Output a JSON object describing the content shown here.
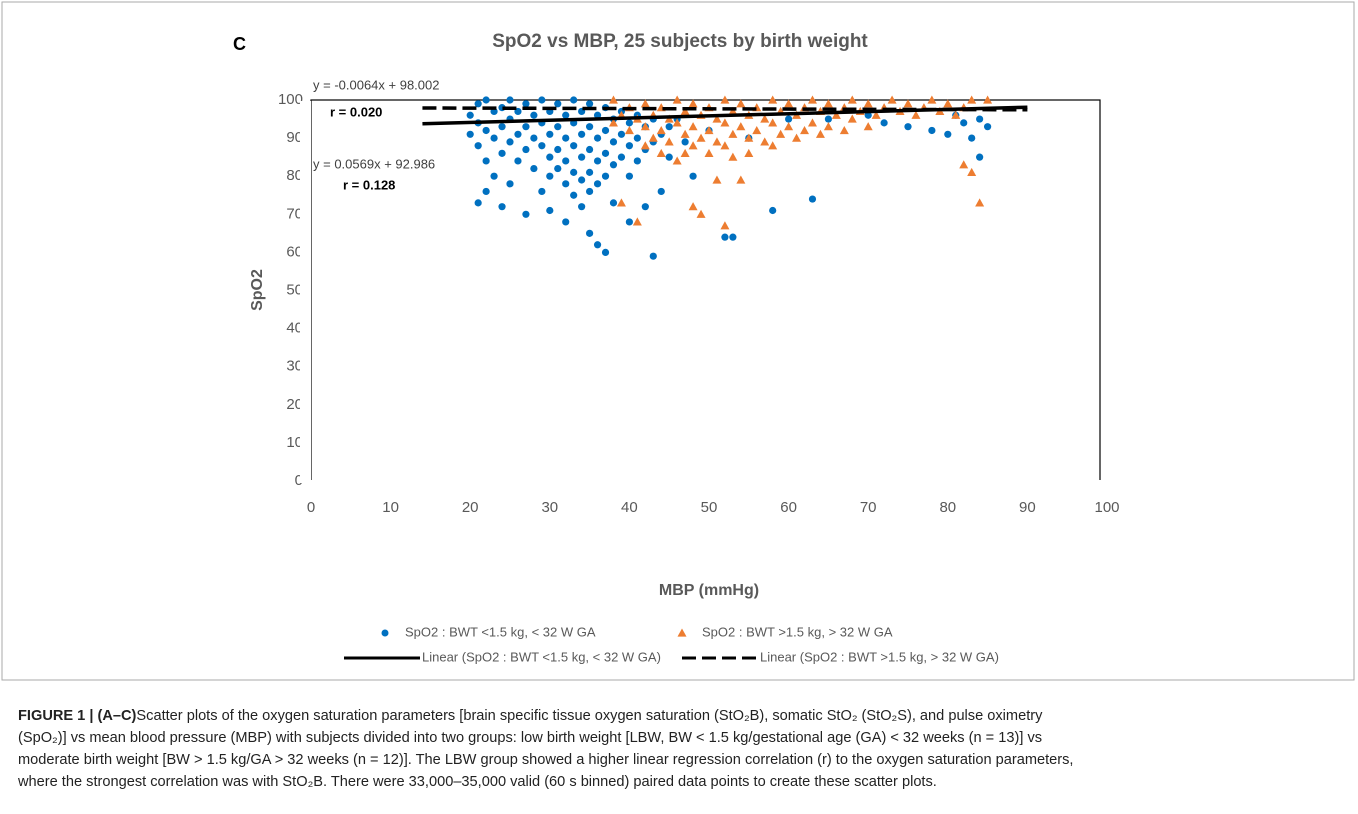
{
  "panel_label": "C",
  "chart_data": {
    "type": "scatter",
    "title": "SpO2 vs MBP, 25 subjects by birth weight",
    "x_label": "MBP (mmHg)",
    "y_label": "SpO2",
    "xlim": [
      0,
      100
    ],
    "xticks": [
      0,
      10,
      20,
      30,
      40,
      50,
      60,
      70,
      80,
      90,
      100
    ],
    "ylim": [
      0,
      100
    ],
    "yticks": [
      0,
      10,
      20,
      30,
      40,
      50,
      60,
      70,
      80,
      90,
      100
    ],
    "annotations": [
      "y = -0.0064x + 98.002",
      "r = 0.020",
      "y = 0.0569x + 92.986",
      "r = 0.128"
    ],
    "series": [
      {
        "name": "SpO2 : BWT <1.5 kg, < 32 W GA",
        "color": "#0070c0",
        "marker": "circle",
        "x": [
          20,
          20,
          21,
          21,
          21,
          21,
          22,
          22,
          22,
          22,
          23,
          23,
          23,
          24,
          24,
          24,
          24,
          25,
          25,
          25,
          25,
          26,
          26,
          26,
          27,
          27,
          27,
          27,
          28,
          28,
          28,
          29,
          29,
          29,
          29,
          30,
          30,
          30,
          30,
          30,
          31,
          31,
          31,
          31,
          32,
          32,
          32,
          32,
          32,
          33,
          33,
          33,
          33,
          33,
          34,
          34,
          34,
          34,
          34,
          35,
          35,
          35,
          35,
          35,
          35,
          36,
          36,
          36,
          36,
          36,
          37,
          37,
          37,
          37,
          37,
          38,
          38,
          38,
          38,
          39,
          39,
          39,
          40,
          40,
          40,
          40,
          41,
          41,
          41,
          42,
          42,
          42,
          43,
          43,
          43,
          44,
          44,
          45,
          45,
          46,
          47,
          48,
          50,
          52,
          53,
          55,
          58,
          60,
          63,
          65,
          70,
          72,
          75,
          78,
          80,
          81,
          82,
          83,
          84,
          84,
          85
        ],
        "values": [
          96,
          91,
          99,
          94,
          88,
          73,
          100,
          92,
          84,
          76,
          97,
          90,
          80,
          98,
          93,
          86,
          72,
          100,
          95,
          89,
          78,
          97,
          91,
          84,
          99,
          93,
          87,
          70,
          96,
          90,
          82,
          100,
          94,
          88,
          76,
          97,
          91,
          85,
          80,
          71,
          99,
          93,
          87,
          82,
          96,
          90,
          84,
          78,
          68,
          100,
          94,
          88,
          81,
          75,
          97,
          91,
          85,
          79,
          72,
          99,
          93,
          87,
          81,
          76,
          65,
          96,
          90,
          84,
          78,
          62,
          98,
          92,
          86,
          80,
          60,
          95,
          89,
          83,
          73,
          97,
          91,
          85,
          94,
          88,
          80,
          68,
          96,
          90,
          84,
          93,
          87,
          72,
          95,
          89,
          59,
          91,
          76,
          93,
          85,
          95,
          89,
          80,
          92,
          64,
          64,
          90,
          71,
          95,
          74,
          95,
          96,
          94,
          93,
          92,
          91,
          96,
          94,
          90,
          85,
          95,
          93
        ]
      },
      {
        "name": "SpO2 : BWT >1.5 kg, > 32 W GA",
        "color": "#ed7d31",
        "marker": "triangle",
        "x": [
          38,
          38,
          39,
          39,
          40,
          40,
          41,
          41,
          42,
          42,
          42,
          43,
          43,
          44,
          44,
          44,
          45,
          45,
          46,
          46,
          46,
          47,
          47,
          47,
          48,
          48,
          48,
          48,
          49,
          49,
          49,
          50,
          50,
          50,
          51,
          51,
          51,
          52,
          52,
          52,
          52,
          53,
          53,
          53,
          54,
          54,
          54,
          55,
          55,
          55,
          56,
          56,
          57,
          57,
          58,
          58,
          58,
          59,
          59,
          60,
          60,
          61,
          61,
          62,
          62,
          63,
          63,
          64,
          64,
          65,
          65,
          66,
          67,
          67,
          68,
          68,
          69,
          70,
          70,
          71,
          72,
          73,
          74,
          75,
          76,
          77,
          78,
          79,
          80,
          81,
          82,
          82,
          83,
          83,
          84,
          85
        ],
        "values": [
          100,
          94,
          96,
          73,
          98,
          92,
          95,
          68,
          99,
          93,
          88,
          96,
          90,
          98,
          92,
          86,
          95,
          89,
          100,
          94,
          84,
          97,
          91,
          86,
          99,
          93,
          88,
          72,
          96,
          90,
          70,
          98,
          92,
          86,
          95,
          89,
          79,
          100,
          94,
          88,
          67,
          97,
          91,
          85,
          99,
          93,
          79,
          96,
          90,
          86,
          98,
          92,
          95,
          89,
          100,
          94,
          88,
          97,
          91,
          99,
          93,
          96,
          90,
          98,
          92,
          100,
          94,
          97,
          91,
          99,
          93,
          96,
          98,
          92,
          100,
          95,
          97,
          99,
          93,
          96,
          98,
          100,
          97,
          99,
          96,
          98,
          100,
          97,
          99,
          96,
          98,
          83,
          100,
          81,
          73,
          100
        ]
      },
      {
        "name": "Linear (SpO2 : BWT <1.5 kg, < 32 W GA)",
        "color": "#000000",
        "marker": "line",
        "dash": false,
        "x": [
          14,
          90
        ],
        "values": [
          93.78,
          98.1
        ]
      },
      {
        "name": "Linear (SpO2 : BWT >1.5 kg, > 32 W GA)",
        "color": "#000000",
        "marker": "line",
        "dash": true,
        "x": [
          14,
          90
        ],
        "values": [
          97.91,
          97.43
        ]
      }
    ]
  },
  "caption": {
    "label": "FIGURE 1 | (A–C)",
    "lines": [
      " Scatter plots of the oxygen saturation parameters [brain specific tissue oxygen saturation (StO₂B), somatic StO₂ (StO₂S), and pulse oximetry",
      "(SpO₂)] vs mean blood pressure (MBP) with subjects divided into two groups: low birth weight [LBW, BW < 1.5 kg/gestational age (GA) < 32 weeks (n = 13)] vs",
      "moderate birth weight [BW > 1.5 kg/GA > 32 weeks (n = 12)]. The LBW group showed a higher linear regression correlation (r) to the oxygen saturation parameters,",
      "where the strongest correlation was with StO₂B. There were 33,000–35,000 valid (60 s binned) paired data points to create these scatter plots."
    ]
  }
}
